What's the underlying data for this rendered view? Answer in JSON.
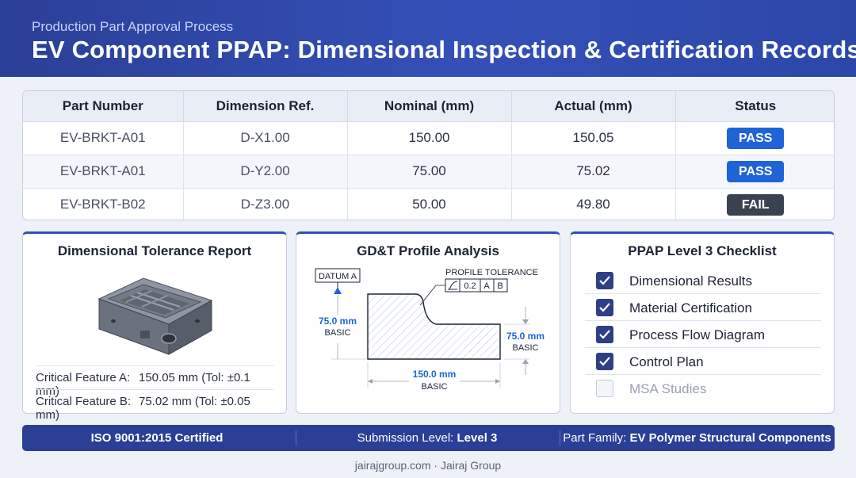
{
  "header": {
    "subtitle": "Production Part Approval Process",
    "title": "EV Component PPAP: Dimensional Inspection & Certification Records"
  },
  "table": {
    "columns": [
      "Part Number",
      "Dimension Ref.",
      "Nominal (mm)",
      "Actual (mm)",
      "Status"
    ],
    "rows": [
      {
        "part": "EV-BRKT-A01",
        "ref": "D-X1.00",
        "nominal": "150.00",
        "actual": "150.05",
        "status": "PASS"
      },
      {
        "part": "EV-BRKT-A01",
        "ref": "D-Y2.00",
        "nominal": "75.00",
        "actual": "75.02",
        "status": "PASS"
      },
      {
        "part": "EV-BRKT-B02",
        "ref": "D-Z3.00",
        "nominal": "50.00",
        "actual": "49.80",
        "status": "FAIL"
      }
    ]
  },
  "tolerance": {
    "title": "Dimensional Tolerance Report",
    "features": [
      {
        "label": "Critical Feature A:",
        "value": "150.05 mm (Tol: ±0.1 mm)"
      },
      {
        "label": "Critical Feature B:",
        "value": "75.02 mm (Tol: ±0.05 mm)"
      }
    ]
  },
  "gdt": {
    "title": "GD&T Profile Analysis",
    "datum": "DATUM A",
    "profile_label": "PROFILE TOLERANCE",
    "fcf": {
      "value": "0.2",
      "datum1": "A",
      "datum2": "B"
    },
    "dim_left": {
      "value": "75.0 mm",
      "note": "BASIC"
    },
    "dim_right": {
      "value": "75.0 mm",
      "note": "BASIC"
    },
    "dim_bottom": {
      "value": "150.0 mm",
      "note": "BASIC"
    }
  },
  "checklist": {
    "title": "PPAP Level 3 Checklist",
    "items": [
      {
        "label": "Dimensional Results",
        "checked": true
      },
      {
        "label": "Material Certification",
        "checked": true
      },
      {
        "label": "Process Flow Diagram",
        "checked": true
      },
      {
        "label": "Control Plan",
        "checked": true
      },
      {
        "label": "MSA Studies",
        "checked": false
      }
    ]
  },
  "footer": {
    "cert": "ISO 9001:2015 Certified",
    "level_label": "Submission Level:",
    "level_value": "Level 3",
    "family_label": "Part Family:",
    "family_value": "EV Polymer Structural Components"
  },
  "credit": "jairajgroup.com · Jairaj Group",
  "colors": {
    "brand": "#2b3f97",
    "pass": "#1f63d6",
    "fail": "#3a4150",
    "check": "#2e3f86"
  }
}
